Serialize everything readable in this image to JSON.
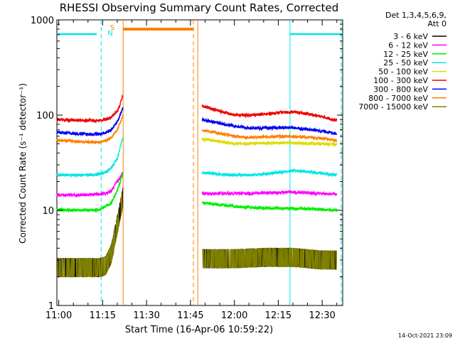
{
  "chart_data": {
    "type": "line",
    "title": "RHESSI Observing Summary Count Rates, Corrected",
    "xlabel": "Start Time (16-Apr-06 10:59:22)",
    "ylabel": "Corrected Count Rate (s⁻¹ detector⁻¹)",
    "footer": "14-Oct-2021 23:09",
    "y_scale": "log",
    "ylim": [
      1,
      1000
    ],
    "xlim": [
      "10:59:22",
      "12:37:00"
    ],
    "x_ticks": [
      "11:00",
      "11:15",
      "11:30",
      "11:45",
      "12:00",
      "12:15",
      "12:30"
    ],
    "y_ticks": [
      "1",
      "10",
      "100",
      "1000"
    ],
    "legend_title": [
      "Det 1,3,4,5,6,9,",
      "Att 0"
    ],
    "legend_position": "right",
    "series": [
      {
        "name": "3 - 6 keV",
        "color": "#000000",
        "pre": {
          "x": [
            "10:59:22",
            "11:05",
            "11:10",
            "11:14",
            "11:16",
            "11:18",
            "11:19",
            "11:20",
            "11:21",
            "11:22"
          ],
          "y": [
            2.5,
            2.5,
            2.5,
            2.5,
            2.6,
            3.5,
            5,
            7,
            10,
            14
          ]
        },
        "post": {
          "x": [
            "11:49",
            "12:00",
            "12:10",
            "12:20",
            "12:30",
            "12:35"
          ],
          "y": [
            3.1,
            3.1,
            3.2,
            3.2,
            3.0,
            3.0
          ]
        }
      },
      {
        "name": "6 - 12 keV",
        "color": "#ff00ff",
        "pre": {
          "x": [
            "10:59:22",
            "11:05",
            "11:10",
            "11:14",
            "11:16",
            "11:18",
            "11:20",
            "11:22"
          ],
          "y": [
            14.5,
            14.5,
            14.5,
            14.8,
            15,
            16,
            20,
            25
          ]
        },
        "post": {
          "x": [
            "11:49",
            "12:00",
            "12:10",
            "12:20",
            "12:30",
            "12:35"
          ],
          "y": [
            15,
            15,
            15.2,
            15.5,
            15,
            14.8
          ]
        }
      },
      {
        "name": "12 - 25 keV",
        "color": "#00ee00",
        "pre": {
          "x": [
            "10:59:22",
            "11:05",
            "11:10",
            "11:14",
            "11:16",
            "11:18",
            "11:20",
            "11:22"
          ],
          "y": [
            10.2,
            10,
            10,
            10.2,
            11,
            12,
            16,
            25
          ]
        },
        "post": {
          "x": [
            "11:49",
            "12:00",
            "12:10",
            "12:20",
            "12:30",
            "12:35"
          ],
          "y": [
            12,
            11,
            10.5,
            10.5,
            10.2,
            10
          ]
        }
      },
      {
        "name": "25 - 50 keV",
        "color": "#00e5e5",
        "pre": {
          "x": [
            "10:59:22",
            "11:05",
            "11:10",
            "11:14",
            "11:16",
            "11:18",
            "11:20",
            "11:22"
          ],
          "y": [
            23.5,
            23.5,
            23.5,
            24,
            25,
            28,
            35,
            60
          ]
        },
        "post": {
          "x": [
            "11:49",
            "11:55",
            "12:00",
            "12:05",
            "12:10",
            "12:15",
            "12:20",
            "12:25",
            "12:30",
            "12:35"
          ],
          "y": [
            25,
            24,
            23.5,
            23.5,
            24,
            25,
            26,
            25.5,
            24.5,
            23.5
          ]
        }
      },
      {
        "name": "50 - 100 keV",
        "color": "#dddd00",
        "pre": {
          "x": [],
          "y": []
        },
        "post": {
          "x": [
            "11:49",
            "11:55",
            "12:00",
            "12:05",
            "12:10",
            "12:20",
            "12:30",
            "12:35"
          ],
          "y": [
            56,
            53,
            50,
            50,
            51,
            51,
            50,
            49
          ]
        }
      },
      {
        "name": "100 - 300 keV",
        "color": "#ee0000",
        "pre": {
          "x": [
            "10:59:22",
            "11:05",
            "11:10",
            "11:14",
            "11:16",
            "11:18",
            "11:20",
            "11:21",
            "11:22"
          ],
          "y": [
            90,
            88,
            88,
            88,
            90,
            95,
            110,
            130,
            165
          ]
        },
        "post": {
          "x": [
            "11:49",
            "11:55",
            "12:00",
            "12:05",
            "12:10",
            "12:15",
            "12:20",
            "12:25",
            "12:30",
            "12:35"
          ],
          "y": [
            125,
            110,
            100,
            100,
            102,
            106,
            108,
            103,
            96,
            88
          ]
        }
      },
      {
        "name": "300 - 800 keV",
        "color": "#0000ee",
        "pre": {
          "x": [
            "10:59:22",
            "11:05",
            "11:10",
            "11:14",
            "11:16",
            "11:18",
            "11:20",
            "11:22"
          ],
          "y": [
            66,
            64,
            63,
            63,
            65,
            70,
            85,
            120
          ]
        },
        "post": {
          "x": [
            "11:49",
            "11:55",
            "12:00",
            "12:05",
            "12:10",
            "12:20",
            "12:30",
            "12:35"
          ],
          "y": [
            90,
            82,
            77,
            73,
            73,
            74,
            68,
            64
          ]
        }
      },
      {
        "name": "800 - 7000 keV",
        "color": "#ff8000",
        "pre": {
          "x": [
            "10:59:22",
            "11:05",
            "11:10",
            "11:14",
            "11:16",
            "11:18",
            "11:20",
            "11:22"
          ],
          "y": [
            55,
            53,
            52,
            52,
            54,
            58,
            70,
            100
          ]
        },
        "post": {
          "x": [
            "11:49",
            "11:55",
            "12:00",
            "12:05",
            "12:10",
            "12:20",
            "12:30",
            "12:35"
          ],
          "y": [
            70,
            64,
            60,
            58,
            59,
            60,
            57,
            54
          ]
        }
      },
      {
        "name": "7000 - 15000 keV",
        "color": "#808000",
        "pre": {
          "x": [
            "10:59:22",
            "11:05",
            "11:10",
            "11:14",
            "11:16",
            "11:18",
            "11:19",
            "11:20",
            "11:21",
            "11:22"
          ],
          "y": [
            2.5,
            2.5,
            2.5,
            2.5,
            2.6,
            3.5,
            5,
            7,
            10,
            14
          ]
        },
        "post": {
          "x": [
            "11:49",
            "12:00",
            "12:10",
            "12:20",
            "12:30",
            "12:35"
          ],
          "y": [
            3.1,
            3.1,
            3.2,
            3.2,
            3.0,
            3.0
          ]
        }
      }
    ],
    "flags": [
      {
        "label": "",
        "color": "#00e5e5",
        "segments": [
          [
            "10:59:22",
            "11:13:00"
          ],
          [
            "12:19:00",
            "12:37:00"
          ]
        ]
      },
      {
        "label": "S",
        "color": "#ff8000",
        "segments": [
          [
            "11:22:00",
            "11:46:00"
          ]
        ]
      },
      {
        "label": "N",
        "color": "#00e5e5",
        "segments": []
      }
    ],
    "vlines": [
      {
        "t": "11:14:30",
        "color": "#00e5e5",
        "dash": true
      },
      {
        "t": "11:22:00",
        "color": "#ff8000",
        "dash": false
      },
      {
        "t": "11:46:00",
        "color": "#ff8000",
        "dash": true
      },
      {
        "t": "11:47:30",
        "color": "#ff8000",
        "dash": false
      },
      {
        "t": "12:19:00",
        "color": "#00e5e5",
        "dash": false
      },
      {
        "t": "12:36:30",
        "color": "#00e5e5",
        "dash": true
      }
    ]
  }
}
